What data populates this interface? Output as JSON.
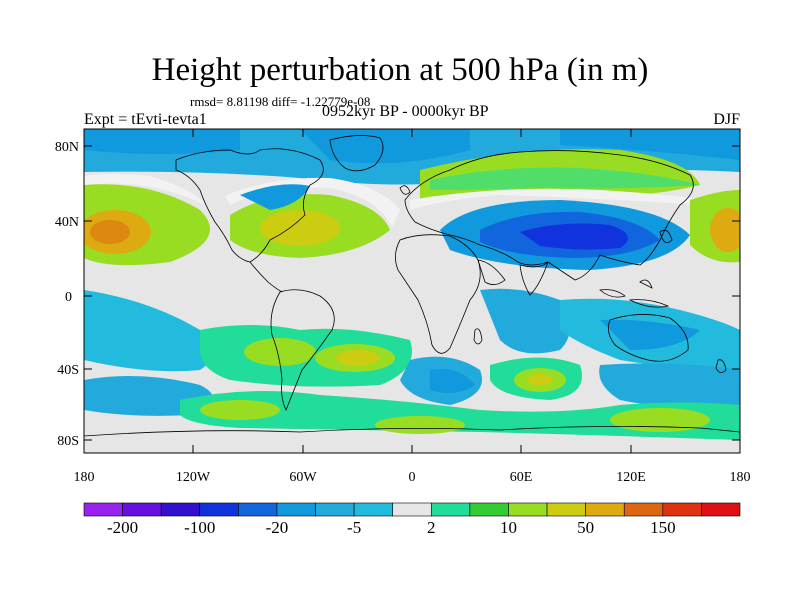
{
  "title": "Height perturbation at 500 hPa (in m)",
  "stats": "rmsd= 8.81198 diff= -1.22779e-08",
  "experiment": "Expt = tEvti-tevta1",
  "period": "0952kyr BP - 0000kyr BP",
  "season": "DJF",
  "axes": {
    "y_ticks": [
      "80N",
      "40N",
      "0",
      "40S",
      "80S"
    ],
    "x_ticks": [
      "180",
      "120W",
      "60W",
      "0",
      "60E",
      "120E",
      "180"
    ]
  },
  "colorbar": {
    "colors": [
      "#9922ee",
      "#6611dd",
      "#3311cc",
      "#1133dd",
      "#1166dd",
      "#1199dd",
      "#22aadd",
      "#22bbdd",
      "#e6e6e6",
      "#22dd99",
      "#33cc33",
      "#99dd22",
      "#cccc11",
      "#ddaa11",
      "#dd6611",
      "#dd3311",
      "#dd1111"
    ],
    "labels": [
      "-200",
      "-100",
      "-20",
      "-5",
      "2",
      "10",
      "50",
      "150"
    ]
  }
}
